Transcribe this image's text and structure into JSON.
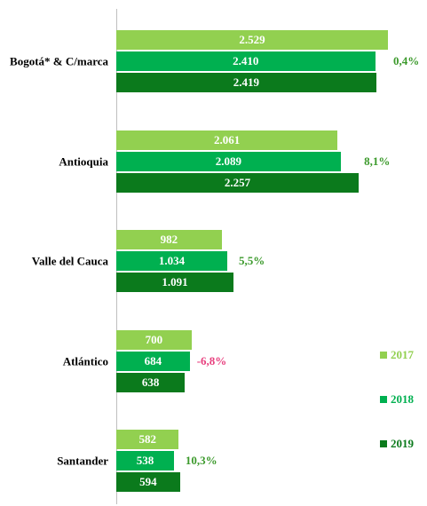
{
  "chart_data": {
    "type": "bar",
    "orientation": "horizontal",
    "categories": [
      "Bogotá* & C/marca",
      "Antioquia",
      "Valle del Cauca",
      "Atlántico",
      "Santander"
    ],
    "series": [
      {
        "name": "2017",
        "color": "#92d050",
        "values": [
          2529,
          2061,
          982,
          700,
          582
        ],
        "value_labels": [
          "2.529",
          "2.061",
          "982",
          "700",
          "582"
        ]
      },
      {
        "name": "2018",
        "color": "#00b050",
        "values": [
          2410,
          2089,
          1034,
          684,
          538
        ],
        "value_labels": [
          "2.410",
          "2.089",
          "1.034",
          "684",
          "538"
        ]
      },
      {
        "name": "2019",
        "color": "#0b7a1c",
        "values": [
          2419,
          2257,
          1091,
          638,
          594
        ],
        "value_labels": [
          "2.419",
          "2.257",
          "1.091",
          "638",
          "594"
        ]
      }
    ],
    "annotations": [
      {
        "text": "0,4%",
        "color": "#3c9a2c"
      },
      {
        "text": "8,1%",
        "color": "#3c9a2c"
      },
      {
        "text": "5,5%",
        "color": "#3c9a2c"
      },
      {
        "text": "-6,8%",
        "color": "#e8417f"
      },
      {
        "text": "10,3%",
        "color": "#3c9a2c"
      }
    ],
    "legend": "right"
  }
}
